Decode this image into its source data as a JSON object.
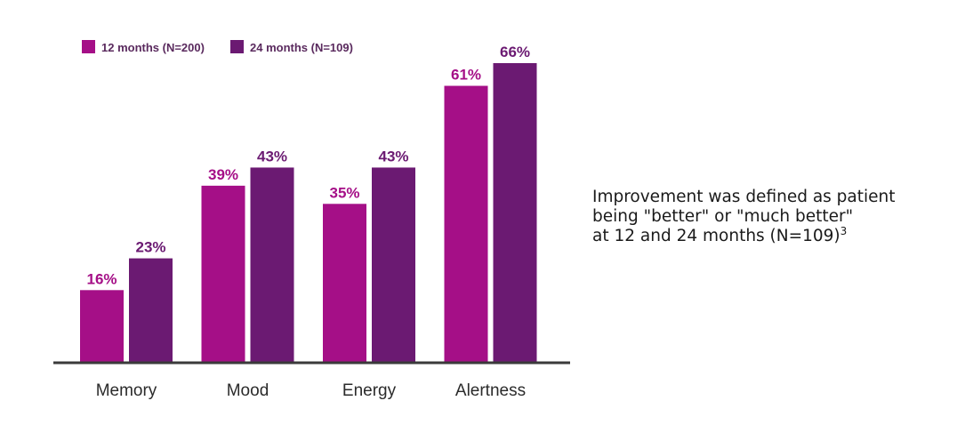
{
  "chart_data": {
    "type": "bar",
    "categories": [
      "Memory",
      "Mood",
      "Energy",
      "Alertness"
    ],
    "series": [
      {
        "name": "12 months (N=200)",
        "values": [
          16,
          39,
          35,
          61
        ],
        "labels": [
          "16%",
          "39%",
          "35%",
          "61%"
        ],
        "color": "#a50f87"
      },
      {
        "name": "24 months (N=109)",
        "values": [
          23,
          43,
          43,
          66
        ],
        "labels": [
          "23%",
          "43%",
          "43%",
          "66%"
        ],
        "color": "#6b1a72"
      }
    ],
    "title": "",
    "xlabel": "",
    "ylabel": "",
    "ylim": [
      0,
      66
    ],
    "grid": false,
    "legend_position": "top-left"
  },
  "note": {
    "lines": [
      "Improvement was defined as patient",
      "being \"better\" or \"much better\"",
      "at 12 and 24 months (N=109)"
    ],
    "superscript": "3"
  }
}
